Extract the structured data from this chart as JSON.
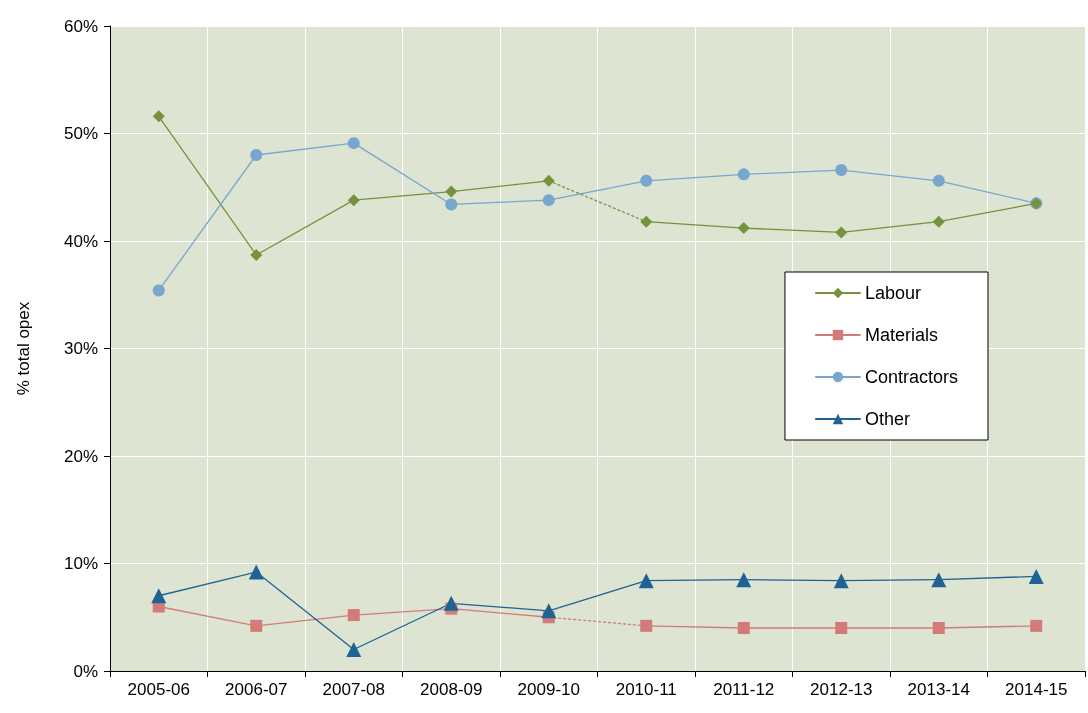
{
  "chart_data": {
    "type": "line",
    "ylabel": "% total opex",
    "categories": [
      "2005-06",
      "2006-07",
      "2007-08",
      "2008-09",
      "2009-10",
      "2010-11",
      "2011-12",
      "2012-13",
      "2013-14",
      "2014-15"
    ],
    "series": [
      {
        "name": "Labour",
        "color": "#76923c",
        "marker": "diamond",
        "values": [
          51.6,
          38.7,
          43.8,
          44.6,
          45.6,
          null,
          null,
          null,
          null,
          null
        ]
      },
      {
        "name": "Materials",
        "color": "#d27b78",
        "marker": "square",
        "values": [
          6.0,
          4.2,
          5.2,
          5.8,
          5.0,
          null,
          null,
          null,
          null,
          null
        ]
      },
      {
        "name": "Contractors",
        "color": "#77a6cf",
        "marker": "circle",
        "values": [
          35.4,
          48.0,
          49.1,
          43.4,
          43.8,
          45.6,
          46.2,
          46.6,
          45.6,
          43.5
        ]
      },
      {
        "name": "Other",
        "color": "#1f6296",
        "marker": "triangle",
        "values": [
          7.0,
          9.2,
          2.0,
          6.3,
          5.6,
          8.4,
          8.5,
          8.4,
          8.5,
          8.8
        ]
      },
      {
        "color": "#76923c",
        "marker": "diamond",
        "values": [
          null,
          null,
          null,
          null,
          null,
          41.8,
          41.2,
          40.8,
          41.8,
          43.5
        ]
      },
      {
        "color": "#d27b78",
        "marker": "square",
        "values": [
          null,
          null,
          null,
          null,
          null,
          4.2,
          4.0,
          4.0,
          4.0,
          4.2
        ]
      },
      {
        "color": "#76923c",
        "marker": "none",
        "line_style": "dotted",
        "values": [
          null,
          null,
          null,
          null,
          45.6,
          41.8,
          null,
          null,
          null,
          null
        ]
      },
      {
        "color": "#d27b78",
        "marker": "none",
        "line_style": "dotted",
        "values": [
          null,
          null,
          null,
          null,
          5.0,
          4.2,
          null,
          null,
          null,
          null
        ]
      }
    ],
    "ylim": [
      0,
      60
    ],
    "yticks": [
      {
        "value": 0,
        "label": "0%"
      },
      {
        "value": 10,
        "label": "10%"
      },
      {
        "value": 20,
        "label": "20%"
      },
      {
        "value": 30,
        "label": "30%"
      },
      {
        "value": 40,
        "label": "40%"
      },
      {
        "value": 50,
        "label": "50%"
      },
      {
        "value": 60,
        "label": "60%"
      }
    ],
    "grid": true,
    "legend": "right"
  }
}
